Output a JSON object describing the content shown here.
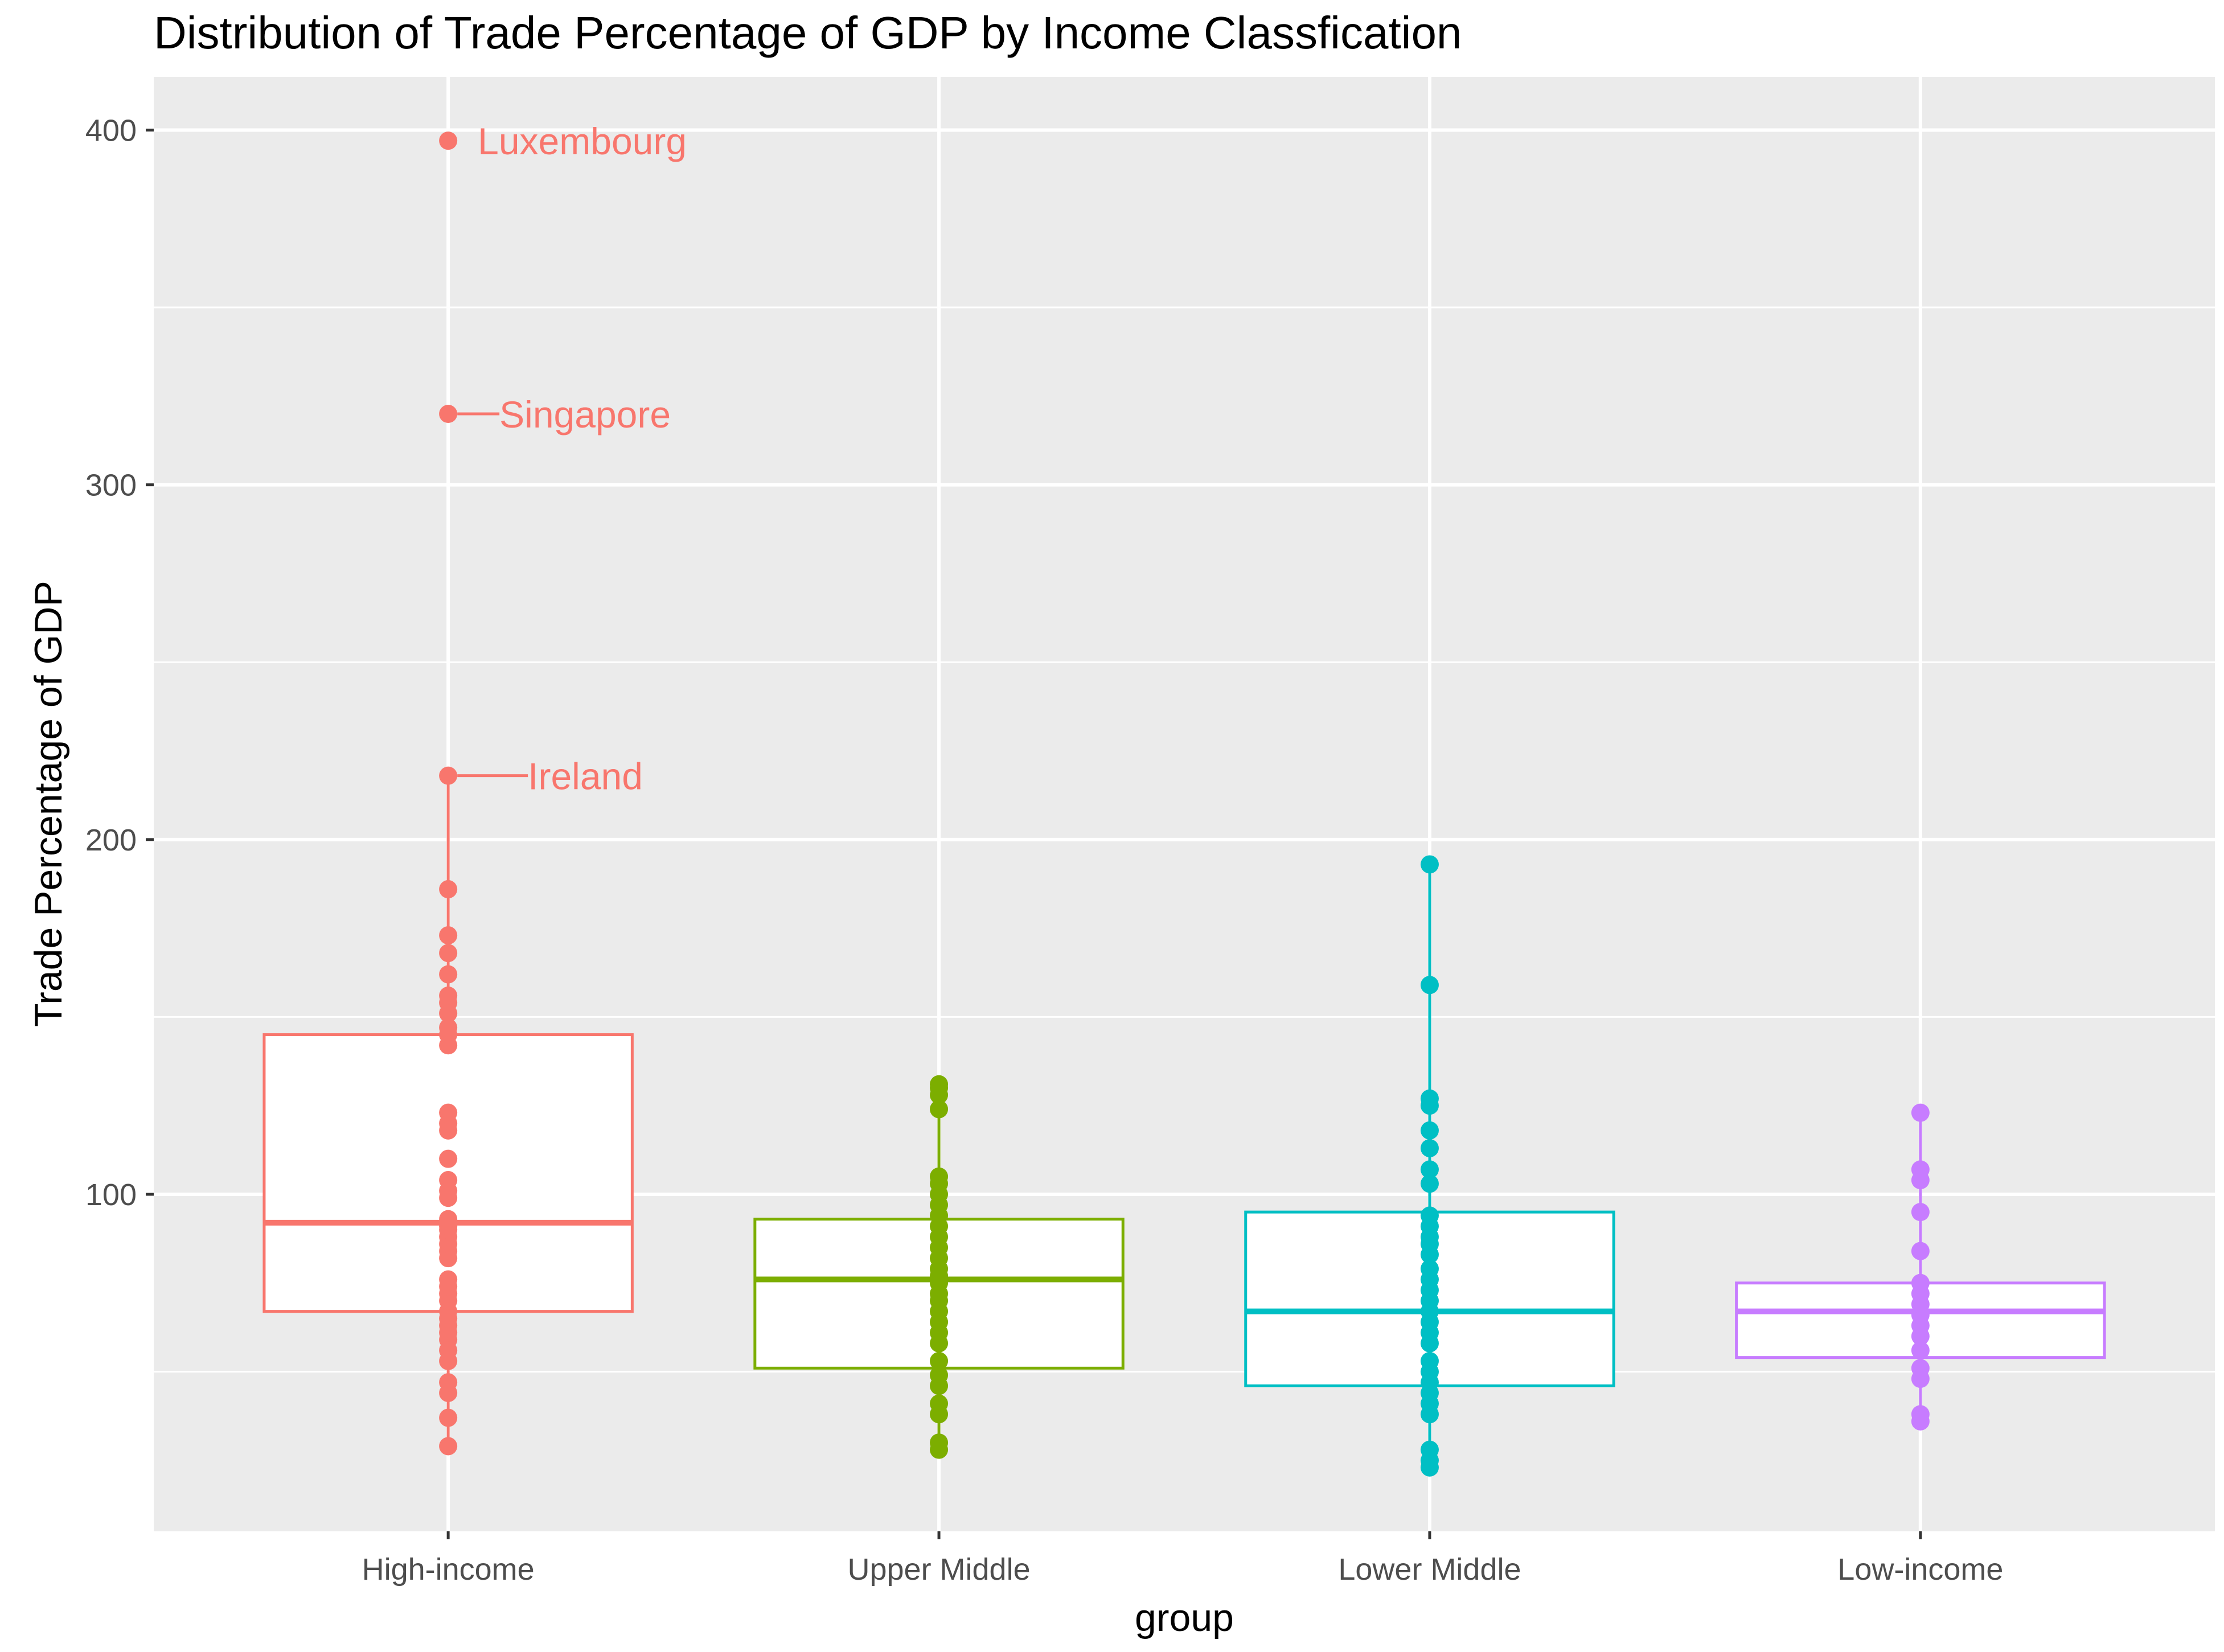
{
  "chart_data": {
    "type": "boxplot",
    "title": "Distribution of Trade Percentage of GDP by Income Classfication",
    "xlabel": "group",
    "ylabel": "Trade Percentage of GDP",
    "ylim": [
      5,
      415
    ],
    "yticks": [
      100,
      200,
      300,
      400
    ],
    "grid": true,
    "legend": "none",
    "categories": [
      "High-income",
      "Upper Middle",
      "Lower Middle",
      "Low-income"
    ],
    "groups": [
      {
        "name": "High-income",
        "color": "#F8766D",
        "box": {
          "q1": 67,
          "median": 92,
          "q3": 145,
          "whisker_low": 29,
          "whisker_high": 218
        },
        "points": [
          29,
          37,
          44,
          47,
          53,
          56,
          59,
          61,
          63,
          65,
          67,
          70,
          72,
          74,
          76,
          82,
          84,
          86,
          88,
          90,
          91,
          93,
          99,
          101,
          104,
          110,
          118,
          120,
          123,
          142,
          145,
          147,
          151,
          154,
          156,
          162,
          168,
          173,
          186,
          218,
          320,
          397
        ],
        "annotations": [
          {
            "label": "Luxembourg",
            "value": 397
          },
          {
            "label": "Singapore",
            "value": 320
          },
          {
            "label": "Ireland",
            "value": 218
          }
        ]
      },
      {
        "name": "Upper Middle",
        "color": "#7CAE00",
        "box": {
          "q1": 51,
          "median": 76,
          "q3": 93,
          "whisker_low": 28,
          "whisker_high": 131
        },
        "points": [
          28,
          30,
          38,
          41,
          46,
          49,
          53,
          58,
          61,
          64,
          67,
          70,
          72,
          75,
          77,
          79,
          82,
          85,
          88,
          91,
          94,
          97,
          100,
          103,
          105,
          124,
          128,
          130,
          131
        ]
      },
      {
        "name": "Lower Middle",
        "color": "#00BFC4",
        "box": {
          "q1": 46,
          "median": 67,
          "q3": 95,
          "whisker_low": 23,
          "whisker_high": 193
        },
        "points": [
          23,
          25,
          28,
          38,
          41,
          44,
          47,
          50,
          53,
          58,
          61,
          64,
          67,
          70,
          73,
          76,
          79,
          83,
          86,
          88,
          91,
          94,
          103,
          107,
          113,
          118,
          125,
          127,
          159,
          193
        ]
      },
      {
        "name": "Low-income",
        "color": "#C77CFF",
        "box": {
          "q1": 54,
          "median": 67,
          "q3": 75,
          "whisker_low": 36,
          "whisker_high": 123
        },
        "points": [
          36,
          38,
          48,
          51,
          56,
          60,
          63,
          66,
          69,
          72,
          75,
          84,
          95,
          104,
          107,
          123
        ]
      }
    ]
  }
}
